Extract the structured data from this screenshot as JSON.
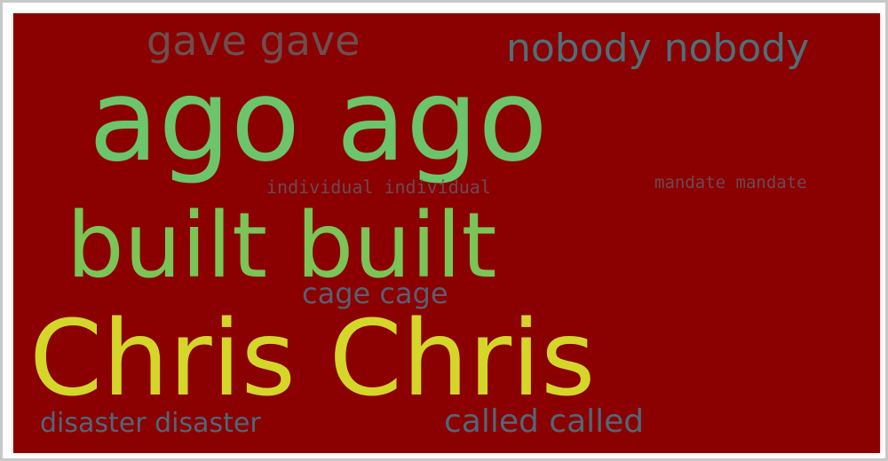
{
  "wordcloud": {
    "background": "#8b0000",
    "words": [
      {
        "key": "gave",
        "text": "gave gave",
        "color": "#6e4e4e"
      },
      {
        "key": "nobody",
        "text": "nobody nobody",
        "color": "#4f6f78"
      },
      {
        "key": "ago",
        "text": "ago ago",
        "color": "#6cc56a"
      },
      {
        "key": "individual",
        "text": "individual individual",
        "color": "#6a4a55"
      },
      {
        "key": "mandate",
        "text": "mandate mandate",
        "color": "#6a4a55"
      },
      {
        "key": "built",
        "text": "built built",
        "color": "#7ac556"
      },
      {
        "key": "cage",
        "text": "cage cage",
        "color": "#5a5f70"
      },
      {
        "key": "chris",
        "text": "Chris Chris",
        "color": "#d4d62a"
      },
      {
        "key": "disaster",
        "text": "disaster disaster",
        "color": "#4f6878"
      },
      {
        "key": "called",
        "text": "called called",
        "color": "#4f6878"
      }
    ]
  }
}
